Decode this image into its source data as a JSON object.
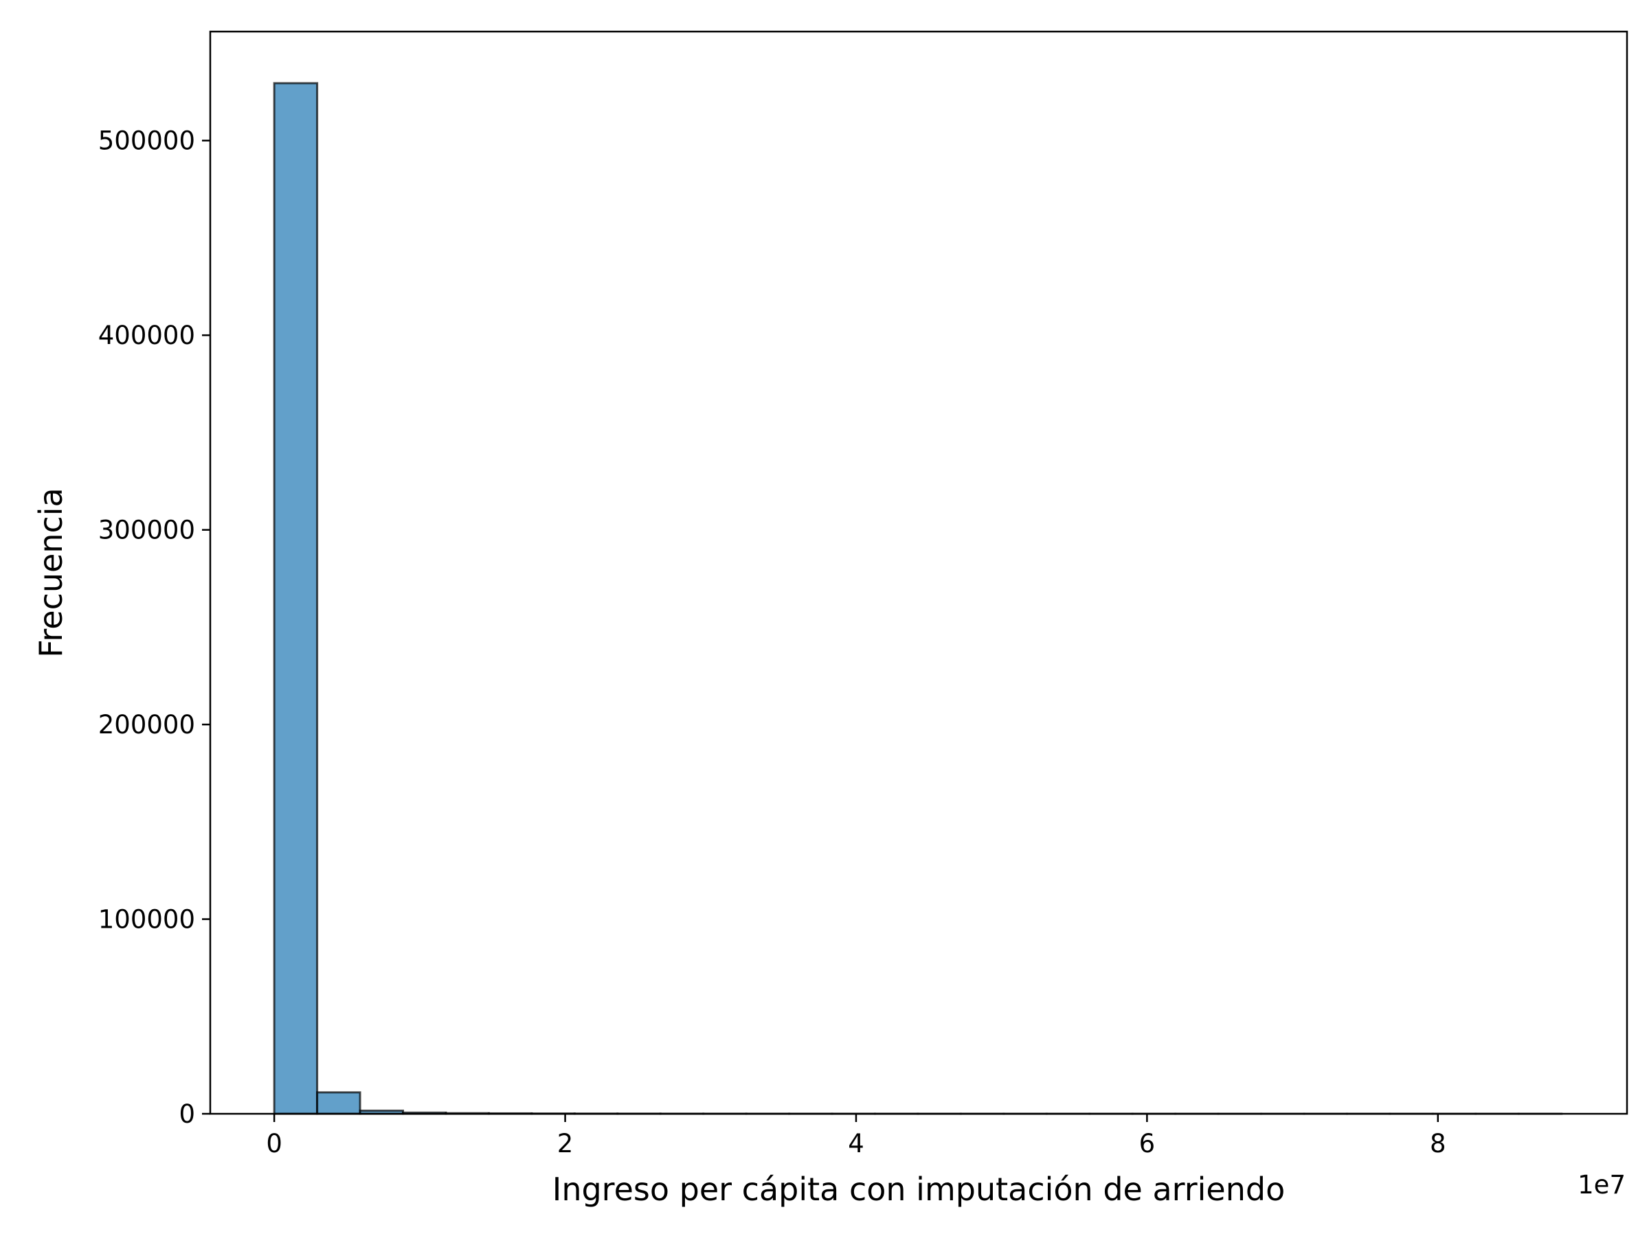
{
  "chart_data": {
    "type": "bar",
    "subtype": "histogram",
    "xlabel": "Ingreso per cápita con imputación de arriendo",
    "ylabel": "Frecuencia",
    "x_offset_label": "1e7",
    "bin_edges": [
      0,
      0.295,
      0.59,
      0.885,
      1.18,
      1.475,
      1.77,
      2.065,
      2.36,
      2.655,
      2.95,
      3.245,
      3.54,
      3.835,
      4.13,
      4.425,
      4.72,
      5.015,
      5.31,
      5.605,
      5.9,
      6.195,
      6.49,
      6.785,
      7.08,
      7.375,
      7.67,
      7.965,
      8.26,
      8.555,
      8.85
    ],
    "values": [
      529500,
      11000,
      1600,
      600,
      300,
      200,
      120,
      80,
      60,
      40,
      30,
      25,
      20,
      15,
      12,
      10,
      8,
      6,
      5,
      4,
      3,
      3,
      2,
      2,
      2,
      1,
      1,
      1,
      1,
      1
    ],
    "xlim": [
      -0.44,
      9.3
    ],
    "ylim": [
      0,
      556000
    ],
    "xticks": [
      0,
      2,
      4,
      6,
      8
    ],
    "yticks": [
      0,
      100000,
      200000,
      300000,
      400000,
      500000
    ],
    "grid": false,
    "legend": false,
    "bar_color": "#1f77b4",
    "bar_alpha": 0.7,
    "edge_color": "#000000"
  }
}
